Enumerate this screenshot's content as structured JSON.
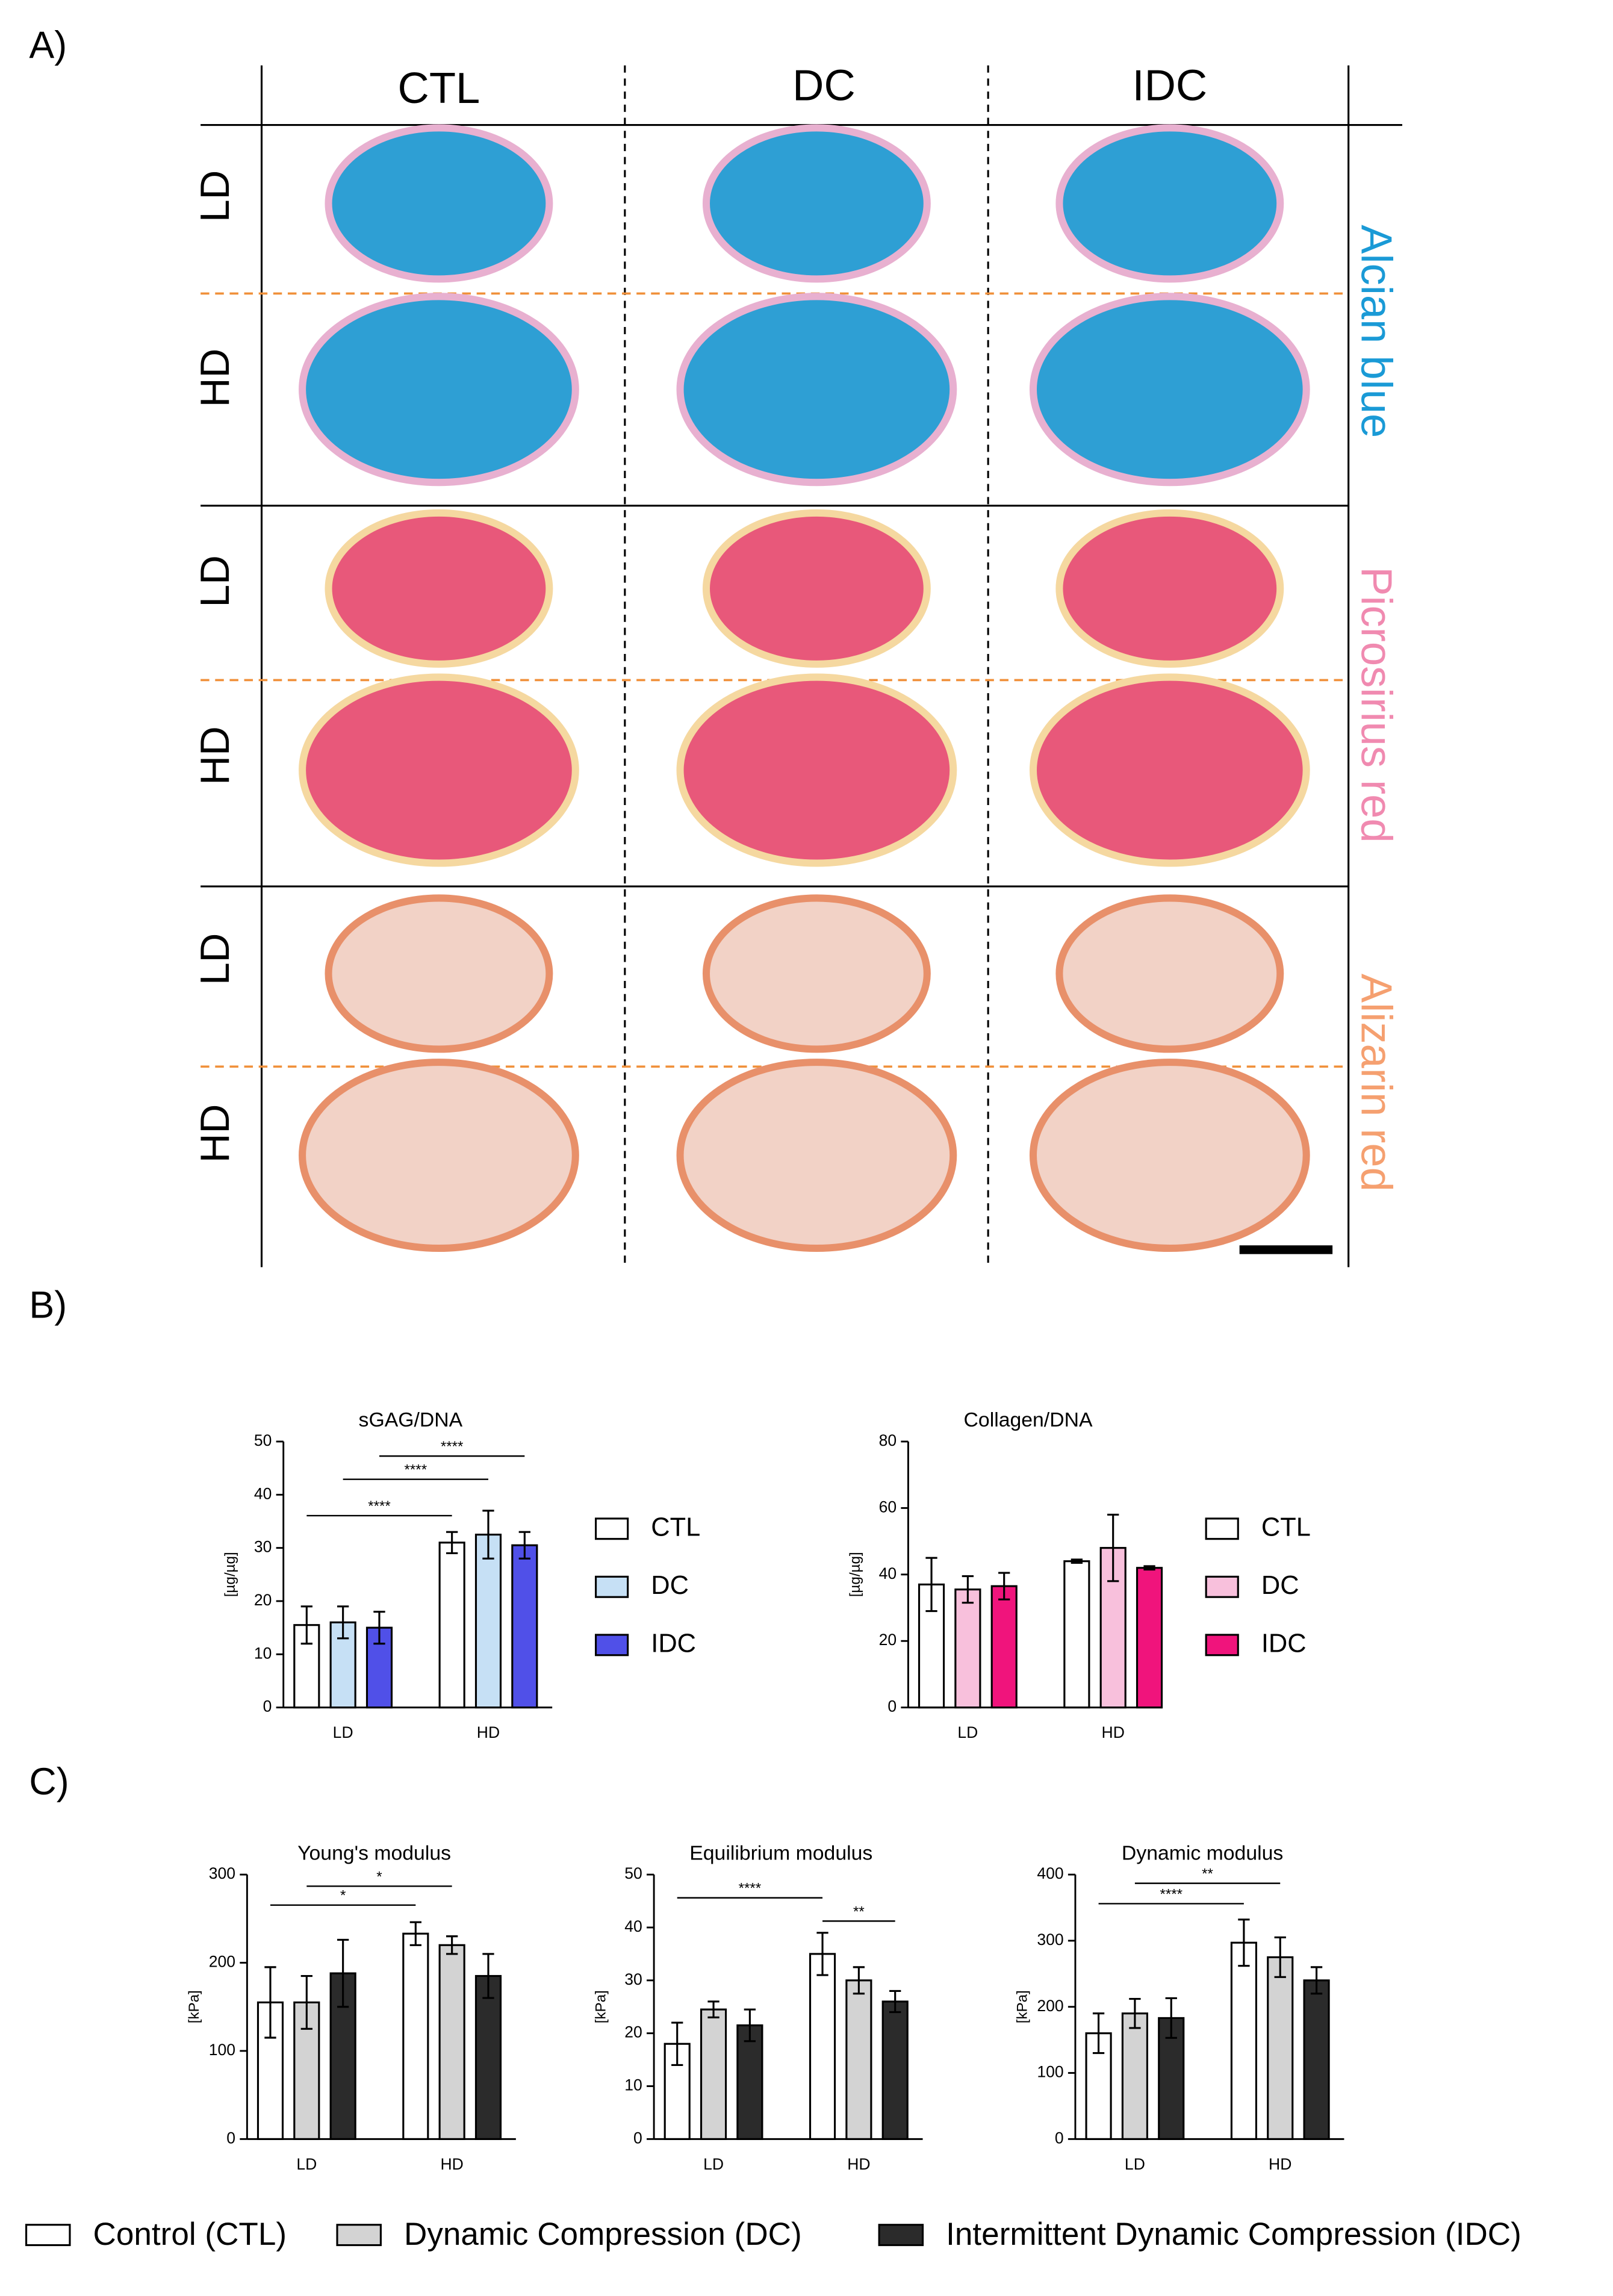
{
  "panel_labels": [
    "A)",
    "B)",
    "C)"
  ],
  "histology": {
    "columns": [
      "CTL",
      "DC",
      "IDC"
    ],
    "rows": [
      "LD",
      "HD",
      "LD",
      "HD",
      "LD",
      "HD"
    ],
    "stains": [
      "Alcian blue",
      "Picrosirius red",
      "Alizarin red"
    ]
  },
  "chart_data": [
    {
      "type": "bar",
      "title": "sGAG/DNA",
      "ylabel": "[µg/µg]",
      "categories": [
        "LD",
        "HD"
      ],
      "series": [
        {
          "name": "CTL",
          "color": "#ffffff",
          "values": [
            15.5,
            31
          ],
          "errors": [
            3.5,
            2
          ]
        },
        {
          "name": "DC",
          "color": "#c6e0f5",
          "values": [
            16,
            32.5
          ],
          "errors": [
            3,
            4.5
          ]
        },
        {
          "name": "IDC",
          "color": "#5050e8",
          "values": [
            15,
            30.5
          ],
          "errors": [
            3,
            2.5
          ]
        }
      ],
      "ylim": [
        0,
        50
      ],
      "yticks": [
        0,
        10,
        20,
        30,
        40,
        50
      ],
      "annotations": [
        "****",
        "****",
        "****"
      ],
      "legend": "right"
    },
    {
      "type": "bar",
      "title": "Collagen/DNA",
      "ylabel": "[µg/µg]",
      "categories": [
        "LD",
        "HD"
      ],
      "series": [
        {
          "name": "CTL",
          "color": "#ffffff",
          "values": [
            37,
            44
          ],
          "errors": [
            8,
            0.5
          ]
        },
        {
          "name": "DC",
          "color": "#f8c0dc",
          "values": [
            35.5,
            48
          ],
          "errors": [
            4,
            10
          ]
        },
        {
          "name": "IDC",
          "color": "#f0147c",
          "values": [
            36.5,
            42
          ],
          "errors": [
            4,
            0.5
          ]
        }
      ],
      "ylim": [
        0,
        80
      ],
      "yticks": [
        0,
        20,
        40,
        60,
        80
      ],
      "legend": "right"
    },
    {
      "type": "bar",
      "title": "Young's modulus",
      "ylabel": "[kPa]",
      "categories": [
        "LD",
        "HD"
      ],
      "series": [
        {
          "name": "Control (CTL)",
          "color": "#ffffff",
          "values": [
            155,
            233
          ],
          "errors": [
            40,
            13
          ]
        },
        {
          "name": "Dynamic Compression (DC)",
          "color": "#d3d3d3",
          "values": [
            155,
            220
          ],
          "errors": [
            30,
            10
          ]
        },
        {
          "name": "Intermittent Dynamic Compression (IDC)",
          "color": "#2b2b2b",
          "values": [
            188,
            185
          ],
          "errors": [
            38,
            25
          ]
        }
      ],
      "ylim": [
        0,
        300
      ],
      "yticks": [
        0,
        100,
        200,
        300
      ],
      "annotations": [
        "*",
        "*"
      ],
      "legend": "bottom"
    },
    {
      "type": "bar",
      "title": "Equilibrium modulus",
      "ylabel": "[kPa]",
      "categories": [
        "LD",
        "HD"
      ],
      "series": [
        {
          "color": "#ffffff",
          "values": [
            18,
            35
          ],
          "errors": [
            4,
            4
          ]
        },
        {
          "color": "#d3d3d3",
          "values": [
            24.5,
            30
          ],
          "errors": [
            1.5,
            2.5
          ]
        },
        {
          "color": "#2b2b2b",
          "values": [
            21.5,
            26
          ],
          "errors": [
            3,
            2
          ]
        }
      ],
      "ylim": [
        0,
        50
      ],
      "yticks": [
        0,
        10,
        20,
        30,
        40,
        50
      ],
      "annotations": [
        "****",
        "**"
      ]
    },
    {
      "type": "bar",
      "title": "Dynamic modulus",
      "ylabel": "[kPa]",
      "categories": [
        "LD",
        "HD"
      ],
      "series": [
        {
          "color": "#ffffff",
          "values": [
            160,
            297
          ],
          "errors": [
            30,
            35
          ]
        },
        {
          "color": "#d3d3d3",
          "values": [
            190,
            275
          ],
          "errors": [
            22,
            30
          ]
        },
        {
          "color": "#2b2b2b",
          "values": [
            183,
            240
          ],
          "errors": [
            30,
            20
          ]
        }
      ],
      "ylim": [
        0,
        400
      ],
      "yticks": [
        0,
        100,
        200,
        300,
        400
      ],
      "annotations": [
        "****",
        "**"
      ]
    }
  ]
}
